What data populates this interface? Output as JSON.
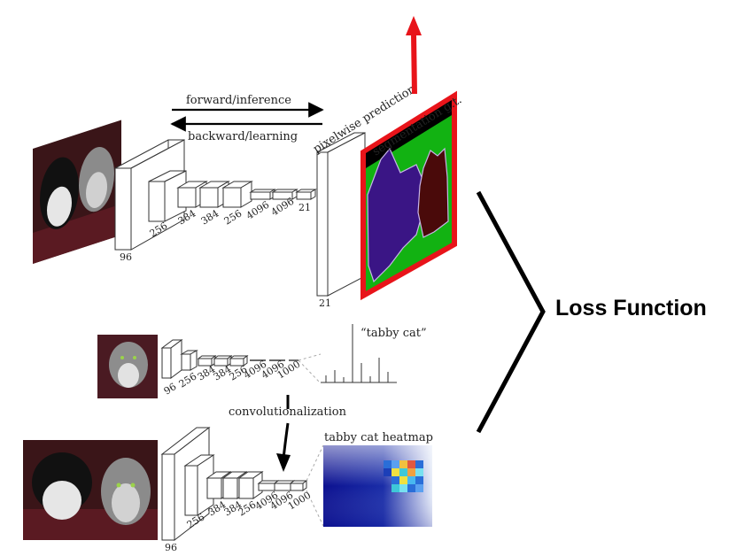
{
  "top_net": {
    "forward_label": "forward/inference",
    "backward_label": "backward/learning",
    "pixelwise_label": "pixelwise prediction",
    "gt_label": "segmentation g.t.",
    "depth_labels": [
      "96",
      "256",
      "384",
      "384",
      "256",
      "4096",
      "4096",
      "21"
    ],
    "output_depth": "21"
  },
  "classification_net": {
    "depth_labels": [
      "96",
      "256",
      "384",
      "384",
      "256",
      "4096",
      "4096",
      "1000"
    ],
    "prediction_label": "“tabby cat”"
  },
  "convolutionalization_label": "convolutionalization",
  "bottom_net": {
    "depth_labels": [
      "96",
      "256",
      "384",
      "384",
      "256",
      "4096",
      "4096",
      "1000"
    ],
    "heatmap_label": "tabby cat heatmap"
  },
  "loss_label": "Loss Function",
  "colors": {
    "arrow_red": "#e8141a",
    "gt_border": "#e8141a",
    "seg_background": "#12b212",
    "seg_dog": "#3a1585",
    "seg_cat": "#4a0a0a",
    "heatmap_base": "#0c1190"
  }
}
